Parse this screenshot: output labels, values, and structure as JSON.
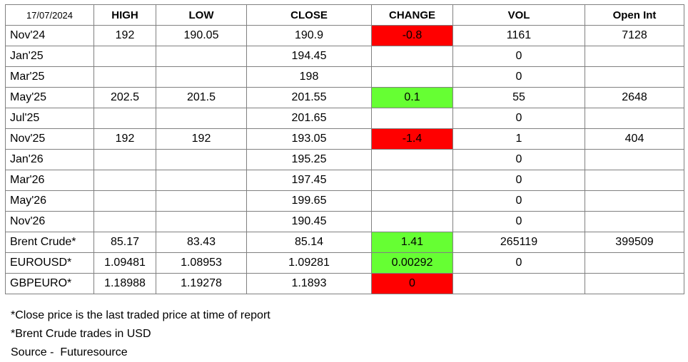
{
  "table": {
    "header": [
      "17/07/2024",
      "HIGH",
      "LOW",
      "CLOSE",
      "CHANGE",
      "VOL",
      "Open Int"
    ],
    "rows": [
      [
        "Nov'24",
        "192",
        "190.05",
        "190.9",
        "-0.8",
        "1161",
        "7128"
      ],
      [
        "Jan'25",
        null,
        null,
        "194.45",
        null,
        "0",
        null
      ],
      [
        "Mar'25",
        null,
        null,
        "198",
        null,
        "0",
        null
      ],
      [
        "May'25",
        "202.5",
        "201.5",
        "201.55",
        "0.1",
        "55",
        "2648"
      ],
      [
        "Jul'25",
        null,
        null,
        "201.65",
        null,
        "0",
        null
      ],
      [
        "Nov'25",
        "192",
        "192",
        "193.05",
        "-1.4",
        "1",
        "404"
      ],
      [
        "Jan'26",
        null,
        null,
        "195.25",
        null,
        "0",
        null
      ],
      [
        "Mar'26",
        null,
        null,
        "197.45",
        null,
        "0",
        null
      ],
      [
        "May'26",
        null,
        null,
        "199.65",
        null,
        "0",
        null
      ],
      [
        "Nov'26",
        null,
        null,
        "190.45",
        null,
        "0",
        null
      ],
      [
        "Brent Crude*",
        "85.17",
        "83.43",
        "85.14",
        "1.41",
        "265119",
        "399509"
      ],
      [
        "EUROUSD*",
        "1.09481",
        "1.08953",
        "1.09281",
        "0.00292",
        "0",
        null
      ],
      [
        "GBPEURO*",
        "1.18988",
        "1.19278",
        "1.1893",
        "0",
        null,
        null
      ]
    ],
    "change_colors": [
      "#ff0000",
      null,
      null,
      "#66ff33",
      null,
      "#ff0000",
      null,
      null,
      null,
      null,
      "#66ff33",
      "#66ff33",
      "#ff0000"
    ]
  },
  "footnotes": [
    "*Close price is the last traded price at time of report",
    "*Brent Crude trades in USD",
    "Source -  Futuresource"
  ]
}
